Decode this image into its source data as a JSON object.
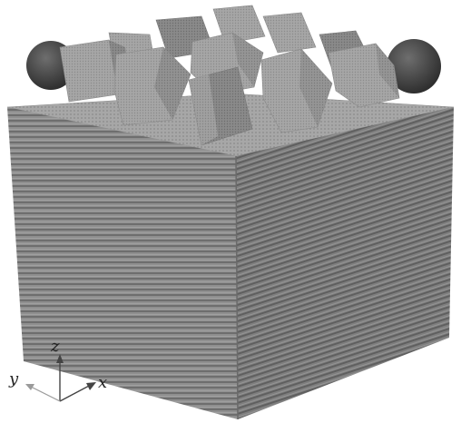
{
  "axes": {
    "x_label": "x",
    "y_label": "y",
    "z_label": "z"
  },
  "colors": {
    "background": "#ffffff",
    "slab_front": "#8c8c8c",
    "slab_side": "#7a7a7a",
    "slab_top": "#a9a9a9",
    "cube_light": "#b5b5b5",
    "cube_mid": "#9a9a9a",
    "cube_dark": "#7d7d7d",
    "sphere": "#4a4a4a",
    "axis": "#444444"
  }
}
